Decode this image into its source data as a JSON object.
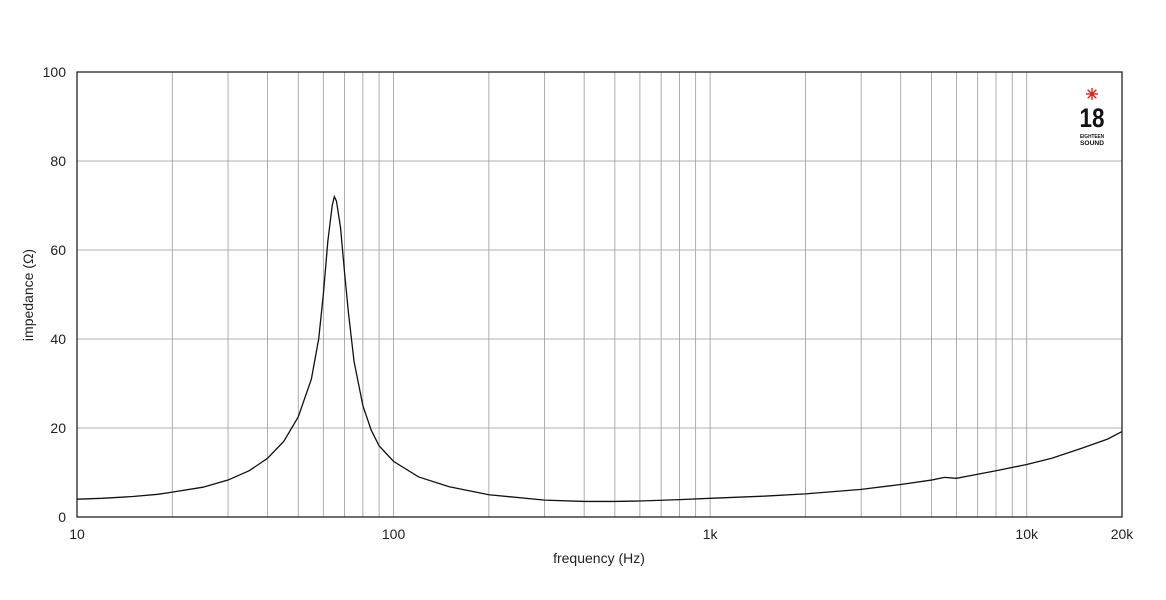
{
  "chart_data": {
    "type": "line",
    "xlabel": "frequency (Hz)",
    "ylabel": "impedance (Ω)",
    "xscale": "log",
    "xlim": [
      10,
      20000
    ],
    "ylim": [
      0,
      100
    ],
    "grid": true,
    "x_ticks": [
      {
        "value": 10,
        "label": "10"
      },
      {
        "value": 100,
        "label": "100"
      },
      {
        "value": 1000,
        "label": "1k"
      },
      {
        "value": 10000,
        "label": "10k"
      },
      {
        "value": 20000,
        "label": "20k"
      }
    ],
    "y_ticks": [
      {
        "value": 0,
        "label": "0"
      },
      {
        "value": 20,
        "label": "20"
      },
      {
        "value": 40,
        "label": "40"
      },
      {
        "value": 60,
        "label": "60"
      },
      {
        "value": 80,
        "label": "80"
      },
      {
        "value": 100,
        "label": "100"
      }
    ],
    "series": [
      {
        "color": "#111111",
        "points": [
          [
            10,
            4.0
          ],
          [
            12,
            4.2
          ],
          [
            15,
            4.6
          ],
          [
            18,
            5.1
          ],
          [
            20,
            5.6
          ],
          [
            25,
            6.7
          ],
          [
            30,
            8.3
          ],
          [
            35,
            10.4
          ],
          [
            40,
            13.2
          ],
          [
            45,
            17.0
          ],
          [
            50,
            22.5
          ],
          [
            55,
            31.0
          ],
          [
            58,
            40.0
          ],
          [
            60,
            50.0
          ],
          [
            62,
            62.0
          ],
          [
            64,
            70.0
          ],
          [
            65,
            72.0
          ],
          [
            66,
            71.0
          ],
          [
            68,
            65.0
          ],
          [
            70,
            55.0
          ],
          [
            72,
            46.0
          ],
          [
            75,
            35.0
          ],
          [
            80,
            25.0
          ],
          [
            85,
            19.5
          ],
          [
            90,
            16.0
          ],
          [
            100,
            12.5
          ],
          [
            120,
            9.0
          ],
          [
            150,
            6.8
          ],
          [
            200,
            5.0
          ],
          [
            300,
            3.8
          ],
          [
            400,
            3.5
          ],
          [
            500,
            3.5
          ],
          [
            600,
            3.6
          ],
          [
            800,
            3.9
          ],
          [
            1000,
            4.2
          ],
          [
            1500,
            4.7
          ],
          [
            2000,
            5.2
          ],
          [
            3000,
            6.2
          ],
          [
            4000,
            7.3
          ],
          [
            5000,
            8.3
          ],
          [
            5500,
            8.9
          ],
          [
            6000,
            8.7
          ],
          [
            7000,
            9.6
          ],
          [
            8000,
            10.4
          ],
          [
            10000,
            11.8
          ],
          [
            12000,
            13.2
          ],
          [
            15000,
            15.5
          ],
          [
            18000,
            17.5
          ],
          [
            20000,
            19.2
          ]
        ]
      }
    ]
  },
  "logo": {
    "digits": "18",
    "line1": "EIGHTEEN",
    "line2": "SOUND",
    "star_color": "#e1251b"
  }
}
